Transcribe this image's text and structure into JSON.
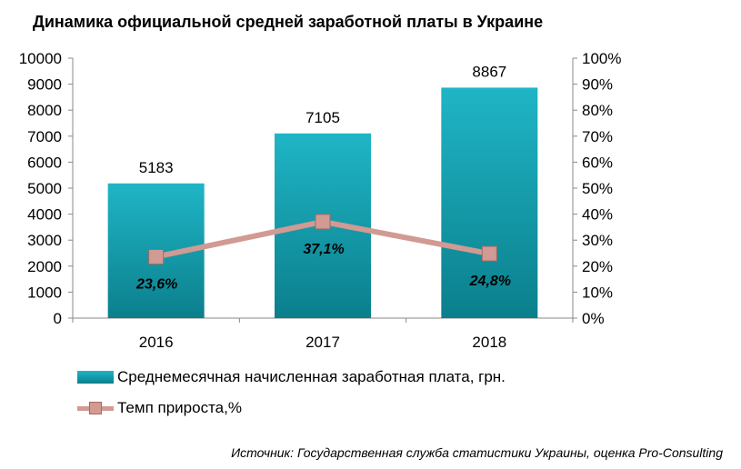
{
  "title": "Динамика официальной средней заработной платы в Украине",
  "source": "Источник: Государственная служба статистики Украины, оценка Pro-Consulting",
  "colors": {
    "bar": "#0e98a6",
    "line": "#d19a93",
    "marker_border": "#a56a63"
  },
  "chart_data": {
    "type": "bar",
    "categories": [
      "2016",
      "2017",
      "2018"
    ],
    "series": [
      {
        "name": "Среднемесячная  начисленная  заработная плата, грн.",
        "type": "bar",
        "axis": "left",
        "values": [
          5183,
          7105,
          8867
        ],
        "labels": [
          "5183",
          "7105",
          "8867"
        ]
      },
      {
        "name": "Темп прироста,%",
        "type": "line",
        "axis": "right",
        "values": [
          23.6,
          37.1,
          24.8
        ],
        "labels": [
          "23,6%",
          "37,1%",
          "24,8%"
        ]
      }
    ],
    "y_left": {
      "range": [
        0,
        10000
      ],
      "ticks": [
        "0",
        "1000",
        "2000",
        "3000",
        "4000",
        "5000",
        "6000",
        "7000",
        "8000",
        "9000",
        "10000"
      ]
    },
    "y_right": {
      "range": [
        0,
        100
      ],
      "ticks": [
        "0%",
        "10%",
        "20%",
        "30%",
        "40%",
        "50%",
        "60%",
        "70%",
        "80%",
        "90%",
        "100%"
      ]
    },
    "grid": false,
    "legend": "bottom"
  }
}
